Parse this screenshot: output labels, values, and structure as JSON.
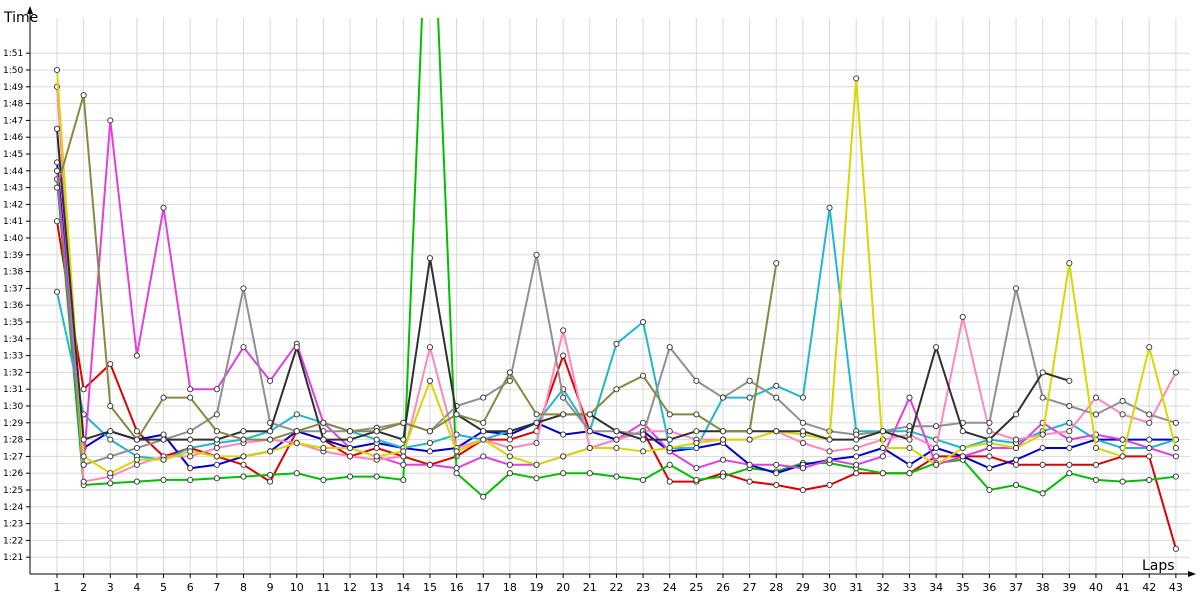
{
  "chart_data": {
    "type": "line",
    "title": "",
    "xlabel": "Laps",
    "ylabel": "Time",
    "grid": true,
    "legend": "none",
    "x_ticks": [
      "1",
      "2",
      "3",
      "4",
      "5",
      "6",
      "7",
      "8",
      "9",
      "10",
      "11",
      "12",
      "13",
      "14",
      "15",
      "16",
      "17",
      "18",
      "19",
      "20",
      "21",
      "22",
      "23",
      "24",
      "25",
      "26",
      "27",
      "28",
      "29",
      "30",
      "31",
      "32",
      "33",
      "34",
      "35",
      "36",
      "37",
      "38",
      "39",
      "40",
      "41",
      "42",
      "43"
    ],
    "y_ticks": [
      "1:21",
      "1:22",
      "1:23",
      "1:24",
      "1:25",
      "1:26",
      "1:27",
      "1:28",
      "1:29",
      "1:30",
      "1:31",
      "1:32",
      "1:33",
      "1:34",
      "1:35",
      "1:36",
      "1:37",
      "1:38",
      "1:39",
      "1:40",
      "1:41",
      "1:42",
      "1:43",
      "1:44",
      "1:45",
      "1:46",
      "1:47",
      "1:48",
      "1:49",
      "1:50",
      "1:51"
    ],
    "xlim": [
      1,
      43
    ],
    "ylim": [
      80,
      112
    ],
    "series": [
      {
        "color": "#e00000",
        "values": [
          101,
          91,
          92.5,
          88.5,
          87,
          87.5,
          87,
          86.5,
          85.5,
          88.5,
          88,
          87,
          87.5,
          87,
          86.5,
          87,
          88,
          88,
          88.5,
          93,
          88.5,
          88,
          88.5,
          85.5,
          85.5,
          86,
          85.5,
          85.3,
          85,
          85.3,
          86,
          86,
          86,
          87,
          87,
          87,
          86.5,
          86.5,
          86.5,
          86.5,
          87,
          87,
          81.5
        ]
      },
      {
        "color": "#00c000",
        "values": [
          103.5,
          85.3,
          85.4,
          85.5,
          85.6,
          85.6,
          85.7,
          85.8,
          85.9,
          86,
          85.6,
          85.8,
          85.8,
          85.6,
          125,
          86,
          84.6,
          86,
          85.7,
          86,
          86,
          85.8,
          85.6,
          86.5,
          85.6,
          85.8,
          86.3,
          86.1,
          86.6,
          86.6,
          86.3,
          86,
          86,
          86.6,
          86.8,
          85,
          85.3,
          84.8,
          86,
          85.6,
          85.5,
          85.6,
          85.8
        ]
      },
      {
        "color": "#0000d0",
        "values": [
          104.5,
          87.5,
          88.5,
          88,
          88.3,
          86.3,
          86.5,
          87,
          87.3,
          88.5,
          88,
          87.5,
          87.8,
          87.5,
          87.3,
          87.5,
          88.5,
          88.3,
          89,
          88.3,
          88.5,
          88,
          88.5,
          87.3,
          87.5,
          87.8,
          86.5,
          86,
          86.5,
          86.8,
          87,
          87.5,
          86.5,
          87.5,
          87,
          86.3,
          86.8,
          87.5,
          87.5,
          88,
          88,
          88,
          88
        ]
      },
      {
        "color": "#20b8d0",
        "values": [
          96.8,
          89.5,
          88,
          87,
          86.8,
          87.5,
          87.8,
          88,
          88.5,
          89.5,
          89,
          88.5,
          88,
          87.5,
          87.8,
          88.3,
          88,
          88.5,
          89,
          91,
          88.5,
          93.7,
          95,
          87.5,
          87.5,
          90.5,
          90.5,
          91.2,
          90.5,
          101.8,
          88.5,
          88.5,
          88.5,
          88,
          87.5,
          88,
          87.8,
          88.5,
          89,
          88,
          87.5,
          87.5,
          88
        ]
      },
      {
        "color": "#e040e0",
        "values": [
          104,
          86.5,
          107,
          93,
          101.8,
          91,
          91,
          93.5,
          91.5,
          93.7,
          89,
          87.5,
          87,
          86.5,
          86.5,
          86.3,
          87,
          86.5,
          86.5,
          87,
          87.5,
          88,
          89,
          87.3,
          86.3,
          86.8,
          86.5,
          86.5,
          86.3,
          86.8,
          86.5,
          87,
          90.5,
          86.5,
          87,
          87.5,
          87.5,
          89,
          88,
          88.3,
          88,
          87.5,
          87
        ]
      },
      {
        "color": "#ff88bb",
        "values": [
          109,
          85.5,
          85.8,
          86.5,
          87,
          87,
          87.5,
          87.8,
          88,
          87.8,
          87.3,
          87,
          86.8,
          87,
          93.5,
          87.5,
          88,
          87.5,
          87.8,
          94.5,
          87.5,
          88,
          88.5,
          88.5,
          88,
          88,
          88,
          88.5,
          87.8,
          87.3,
          87.5,
          88,
          88.3,
          87.5,
          95.3,
          88.5,
          88,
          88.3,
          88.5,
          90.5,
          89.5,
          89,
          92
        ]
      },
      {
        "color": "#909090",
        "values": [
          106.5,
          86.5,
          87,
          87.5,
          88,
          88.5,
          89.5,
          97,
          89,
          88.5,
          88.5,
          88.5,
          88.7,
          89,
          88.5,
          90,
          90.5,
          91.5,
          99,
          90.5,
          88.5,
          88.5,
          88.3,
          93.5,
          91.5,
          90.5,
          91.5,
          90.5,
          89,
          88.5,
          88.3,
          88.5,
          88.8,
          88.8,
          89,
          89,
          97,
          90.5,
          90,
          89.5,
          90.3,
          89.5,
          89
        ]
      },
      {
        "color": "#d8d800",
        "values": [
          110,
          87,
          86,
          86.8,
          86.8,
          87.3,
          87,
          87,
          87.3,
          87.8,
          87.5,
          87.5,
          87,
          87.3,
          91.5,
          87.3,
          88,
          87,
          86.5,
          87,
          87.5,
          87.5,
          87.3,
          87.5,
          87.8,
          88,
          88,
          88.5,
          88.3,
          88,
          109.5,
          87.5,
          87.5,
          86.5,
          87.5,
          87.8,
          87.5,
          88.3,
          98.5,
          87.5,
          87,
          93.5,
          87.5
        ]
      },
      {
        "color": "#303030",
        "values": [
          106.5,
          88,
          88.5,
          88,
          88,
          88,
          88,
          88.5,
          88.5,
          93.5,
          88,
          88,
          88.5,
          88,
          98.8,
          89.5,
          88.5,
          88.5,
          89,
          89.5,
          89.5,
          88.5,
          88,
          88,
          88.5,
          88.5,
          88.5,
          88.5,
          88.5,
          88,
          88,
          88.5,
          88,
          93.5,
          88.5,
          88,
          89.5,
          92,
          91.5,
          null,
          null,
          null,
          null
        ]
      },
      {
        "color": "#888840",
        "values": [
          103,
          108.5,
          90,
          88,
          90.5,
          90.5,
          88.5,
          88,
          88,
          88.5,
          89,
          88.5,
          88.5,
          89,
          88.5,
          89.5,
          89,
          92,
          89.5,
          89.5,
          89.5,
          91,
          91.8,
          89.5,
          89.5,
          88.5,
          88.5,
          98.5,
          null,
          null,
          null,
          null,
          null,
          null,
          null,
          null,
          null,
          null,
          null,
          null,
          null,
          null,
          null
        ]
      }
    ]
  }
}
